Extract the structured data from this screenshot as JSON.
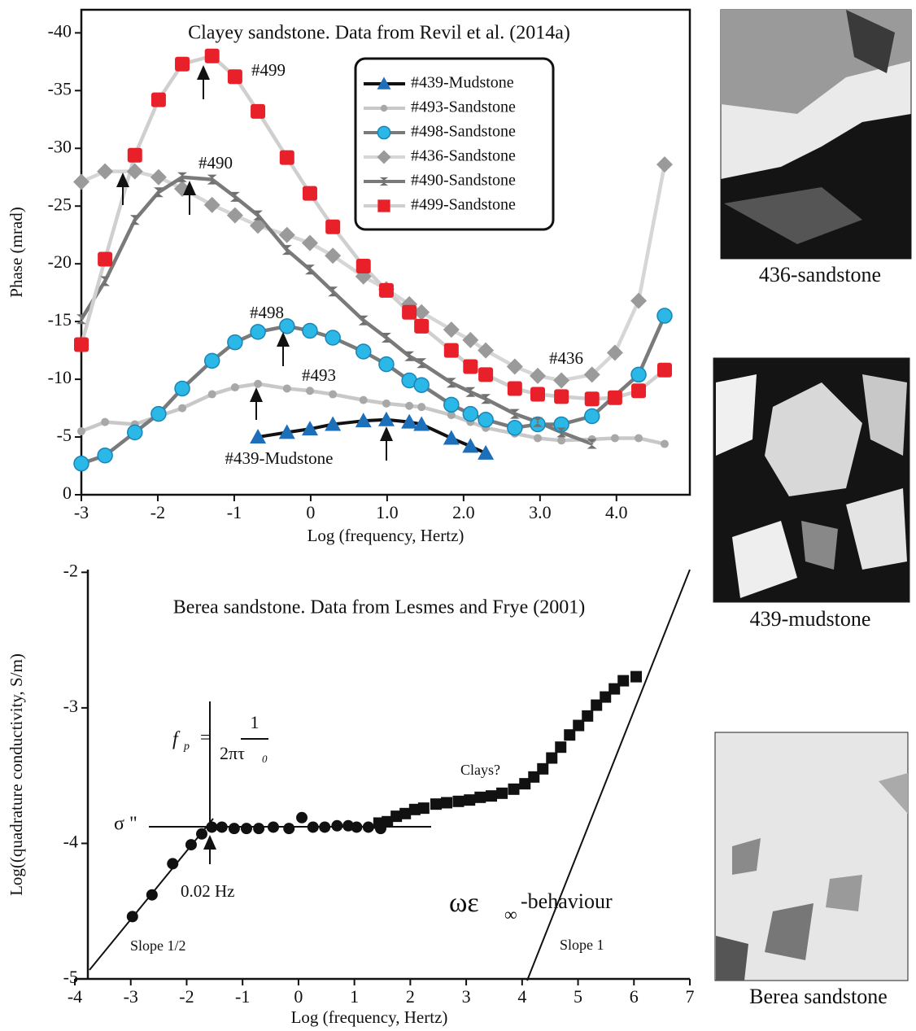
{
  "chart_data": [
    {
      "type": "line",
      "title": "Clayey sandstone. Data from Revil et al. (2014a)",
      "x_label": "Log (frequency, Hertz)",
      "y_label": "Phase (mrad)",
      "xlim": [
        -3,
        4.96
      ],
      "ylim": [
        0,
        -42
      ],
      "xticks": [
        -3,
        -2,
        -1,
        0,
        {
          "value": 1,
          "label": "1.0"
        },
        {
          "value": 2,
          "label": "2.0"
        },
        {
          "value": 3,
          "label": "3.0"
        },
        {
          "value": 4,
          "label": "4.0"
        }
      ],
      "yticks": [
        0,
        -5,
        -10,
        -15,
        -20,
        -25,
        -30,
        -35,
        -40
      ],
      "legend": "upper right",
      "annotations": [
        "#499",
        "#490",
        "#498",
        "#493",
        "#436",
        "#439-Mudstone"
      ],
      "series": [
        {
          "name": "#439-Mudstone",
          "marker": "triangle",
          "color": "#1c6fb8",
          "line_color": "#111111",
          "x": [
            -0.69,
            -0.31,
            -0.01,
            0.29,
            0.69,
            0.99,
            1.29,
            1.45,
            1.84,
            2.09,
            2.29
          ],
          "values": [
            -5.0,
            -5.4,
            -5.7,
            -6.1,
            -6.4,
            -6.5,
            -6.3,
            -6.1,
            -4.9,
            -4.2,
            -3.6
          ]
        },
        {
          "name": "#493-Sandstone",
          "marker": "dot",
          "color": "#a8a8a8",
          "line_color": "#c8c8c8",
          "x": [
            -3,
            -2.69,
            -2.3,
            -1.99,
            -1.68,
            -1.29,
            -0.99,
            -0.69,
            -0.31,
            -0.01,
            0.29,
            0.69,
            0.99,
            1.29,
            1.45,
            1.84,
            2.09,
            2.29,
            2.67,
            2.97,
            3.28,
            3.68,
            3.98,
            4.29,
            4.63
          ],
          "values": [
            -5.5,
            -6.3,
            -6.1,
            -6.8,
            -7.5,
            -8.7,
            -9.3,
            -9.6,
            -9.2,
            -9.0,
            -8.7,
            -8.2,
            -7.9,
            -7.7,
            -7.6,
            -6.9,
            -6.3,
            -5.8,
            -5.3,
            -4.9,
            -4.7,
            -4.8,
            -4.9,
            -4.9,
            -4.4
          ]
        },
        {
          "name": "#498-Sandstone",
          "marker": "circle",
          "color": "#2bb8e6",
          "line_color": "#7a7a7a",
          "x": [
            -3,
            -2.69,
            -2.3,
            -1.99,
            -1.68,
            -1.29,
            -0.99,
            -0.69,
            -0.31,
            -0.01,
            0.29,
            0.69,
            0.99,
            1.29,
            1.45,
            1.84,
            2.09,
            2.29,
            2.67,
            2.97,
            3.28,
            3.68,
            4.29,
            4.63
          ],
          "values": [
            -2.7,
            -3.4,
            -5.4,
            -7.0,
            -9.2,
            -11.6,
            -13.2,
            -14.1,
            -14.6,
            -14.2,
            -13.6,
            -12.4,
            -11.3,
            -9.9,
            -9.5,
            -7.8,
            -7.0,
            -6.5,
            -5.8,
            -6.1,
            -6.1,
            -6.8,
            -10.4,
            -15.5
          ]
        },
        {
          "name": "#436-Sandstone",
          "marker": "diamond",
          "color": "#9a9a9a",
          "line_color": "#d6d6d6",
          "x": [
            -3,
            -2.69,
            -2.3,
            -1.99,
            -1.68,
            -1.29,
            -0.99,
            -0.69,
            -0.31,
            -0.01,
            0.29,
            0.69,
            0.99,
            1.29,
            1.45,
            1.84,
            2.09,
            2.29,
            2.67,
            2.97,
            3.28,
            3.68,
            3.98,
            4.29,
            4.63
          ],
          "values": [
            -27.1,
            -28.0,
            -28.0,
            -27.5,
            -26.5,
            -25.1,
            -24.2,
            -23.3,
            -22.5,
            -21.8,
            -20.7,
            -18.9,
            -17.8,
            -16.5,
            -15.8,
            -14.3,
            -13.4,
            -12.5,
            -11.1,
            -10.3,
            -9.9,
            -10.4,
            -12.3,
            -16.8,
            -28.6
          ]
        },
        {
          "name": "#490-Sandstone",
          "marker": "bowtie",
          "color": "#707070",
          "line_color": "#7a7a7a",
          "x": [
            -3,
            -2.69,
            -2.3,
            -1.99,
            -1.68,
            -1.29,
            -0.99,
            -0.69,
            -0.31,
            -0.01,
            0.29,
            0.69,
            0.99,
            1.29,
            1.45,
            1.84,
            2.09,
            2.29,
            2.67,
            2.97,
            3.28,
            3.68
          ],
          "values": [
            -15.2,
            -18.5,
            -23.8,
            -26.2,
            -27.5,
            -27.3,
            -25.8,
            -24.2,
            -21.2,
            -19.5,
            -17.6,
            -15.1,
            -13.6,
            -12.0,
            -11.4,
            -9.7,
            -8.9,
            -8.3,
            -7.0,
            -6.3,
            -5.4,
            -4.4
          ]
        },
        {
          "name": "#499-Sandstone",
          "marker": "square",
          "color": "#e8202a",
          "line_color": "#cfcfcf",
          "x": [
            -3,
            -2.69,
            -2.3,
            -1.99,
            -1.68,
            -1.29,
            -0.99,
            -0.69,
            -0.31,
            -0.01,
            0.29,
            0.69,
            0.99,
            1.29,
            1.45,
            1.84,
            2.09,
            2.29,
            2.67,
            2.97,
            3.28,
            3.68,
            3.98,
            4.29,
            4.63
          ],
          "values": [
            -13.0,
            -20.4,
            -29.4,
            -34.2,
            -37.3,
            -38.0,
            -36.2,
            -33.2,
            -29.2,
            -26.1,
            -23.2,
            -19.8,
            -17.7,
            -15.8,
            -14.6,
            -12.5,
            -11.1,
            -10.4,
            -9.2,
            -8.7,
            -8.5,
            -8.3,
            -8.4,
            -9.0,
            -10.8
          ]
        }
      ]
    },
    {
      "type": "scatter",
      "title": "Berea sandstone. Data from Lesmes and Frye (2001)",
      "x_label": "Log (frequency, Hertz)",
      "y_label": "Log((quadrature conductivity, S/m)",
      "xlim": [
        -4,
        7
      ],
      "ylim": [
        -5,
        -1.98
      ],
      "xticks": [
        -4,
        -3,
        -2,
        -1,
        0,
        1,
        2,
        3,
        4,
        5,
        6,
        7
      ],
      "yticks": [
        -2,
        -3,
        -4,
        -5
      ],
      "annotations": [
        "σ \"",
        "0.02 Hz",
        "Clays?",
        "Slope 1/2",
        "Slope 1"
      ],
      "formula": {
        "f": "f",
        "sub": "p",
        "eq": "=",
        "num": "1",
        "den": "2πτ",
        "den_sub": "0"
      },
      "behaviour": {
        "main": "ωε",
        "sub": "∞",
        "rest": "-behaviour"
      },
      "series": [
        {
          "marker": "circle",
          "color": "#111111",
          "x": [
            -2.97,
            -2.62,
            -2.25,
            -1.92,
            -1.73,
            -1.55,
            -1.37,
            -1.15,
            -0.93,
            -0.71,
            -0.45,
            -0.17,
            0.06,
            0.26,
            0.47,
            0.69,
            0.89,
            1.04,
            1.25,
            1.47
          ],
          "values": [
            -4.54,
            -4.38,
            -4.15,
            -4.01,
            -3.93,
            -3.88,
            -3.88,
            -3.89,
            -3.89,
            -3.89,
            -3.88,
            -3.89,
            -3.81,
            -3.88,
            -3.88,
            -3.87,
            -3.87,
            -3.88,
            -3.88,
            -3.89
          ]
        },
        {
          "marker": "square",
          "color": "#111111",
          "x": [
            1.44,
            1.59,
            1.75,
            1.91,
            2.08,
            2.24,
            2.46,
            2.65,
            2.86,
            3.06,
            3.25,
            3.45,
            3.64,
            3.85,
            4.05,
            4.21,
            4.37,
            4.53,
            4.69,
            4.85,
            5.01,
            5.17,
            5.33,
            5.49,
            5.65,
            5.81,
            6.04
          ],
          "values": [
            -3.85,
            -3.84,
            -3.8,
            -3.78,
            -3.75,
            -3.74,
            -3.71,
            -3.7,
            -3.69,
            -3.68,
            -3.66,
            -3.65,
            -3.63,
            -3.6,
            -3.56,
            -3.51,
            -3.45,
            -3.37,
            -3.29,
            -3.2,
            -3.13,
            -3.06,
            -2.98,
            -2.92,
            -2.86,
            -2.8,
            -2.77
          ]
        }
      ]
    }
  ],
  "images": [
    {
      "caption": "436-sandstone"
    },
    {
      "caption": "439-mudstone"
    },
    {
      "caption": "Berea sandstone"
    }
  ]
}
